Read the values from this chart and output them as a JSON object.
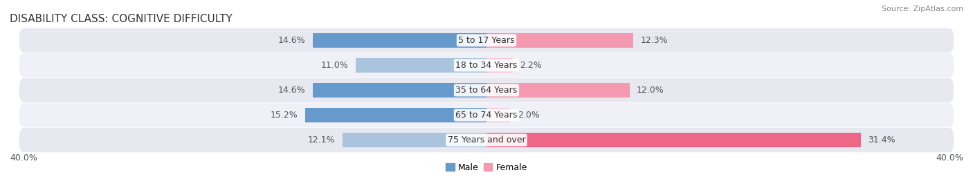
{
  "title": "DISABILITY CLASS: COGNITIVE DIFFICULTY",
  "source": "Source: ZipAtlas.com",
  "categories": [
    "5 to 17 Years",
    "18 to 34 Years",
    "35 to 64 Years",
    "65 to 74 Years",
    "75 Years and over"
  ],
  "male_values": [
    14.6,
    11.0,
    14.6,
    15.2,
    12.1
  ],
  "female_values": [
    12.3,
    2.2,
    12.0,
    2.0,
    31.4
  ],
  "male_color_dark": "#6699cc",
  "male_color_light": "#aac4de",
  "female_color_dark": "#ee6688",
  "female_color_mid": "#f499b0",
  "female_color_light": "#f8c4d4",
  "axis_max": 40.0,
  "bar_height": 0.6,
  "row_bg_colors": [
    "#e8e8f0",
    "#f0f0f8"
  ],
  "legend_male": "Male",
  "legend_female": "Female",
  "title_fontsize": 11,
  "label_fontsize": 9,
  "source_fontsize": 8,
  "legend_fontsize": 9,
  "bottom_label": "40.0%"
}
